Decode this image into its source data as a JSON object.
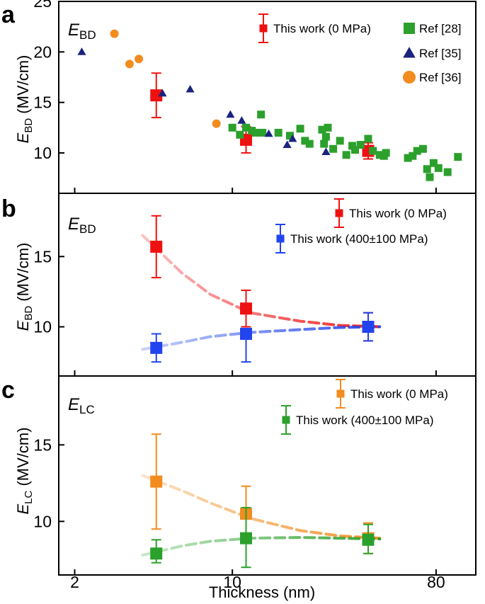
{
  "chart_data": [
    {
      "panel": "a",
      "type": "scatter",
      "label_main": "E",
      "label_sub": "BD",
      "xlabel": "Thickness (nm)",
      "ylabel_main": "E",
      "ylabel_sub": "BD",
      "ylabel_unit": " (MV/cm)",
      "xscale": "log",
      "xlim": [
        1.7,
        120
      ],
      "ylim": [
        6.0,
        25.0
      ],
      "ytick_values": [
        10,
        15,
        20,
        25
      ],
      "ytick_labels": [
        "10",
        "15",
        "20",
        "25"
      ],
      "legend_placement": "top-right",
      "colors": {
        "red": "#ee1111",
        "green": "#2ca02c",
        "navy": "#1a237e",
        "orange": "#f28c1e"
      },
      "series": [
        {
          "name": "This work (0 MPa)",
          "marker": "square",
          "color": "#ee1111",
          "x": [
            4.6,
            11.5,
            40
          ],
          "y": [
            15.7,
            11.3,
            10.2
          ],
          "yerr_low": [
            2.2,
            1.3,
            0.8
          ],
          "yerr_high": [
            2.2,
            1.3,
            0.8
          ]
        },
        {
          "name": "Ref [28]",
          "marker": "square",
          "color": "#2ca02c",
          "x": [
            10.0,
            10.8,
            11.5,
            12.2,
            12.7,
            13.4,
            13.6,
            16.0,
            18.0,
            20.0,
            21.0,
            22.0,
            25.0,
            25.5,
            26.0,
            26.5,
            28.0,
            30.0,
            32.0,
            34.0,
            35.0,
            37.0,
            40.0,
            42.0,
            45.0,
            47.0,
            48.0,
            60.0,
            63.0,
            66.0,
            70.0,
            73.0,
            75.0,
            78.0,
            82.0,
            90.0,
            100.0
          ],
          "y": [
            12.5,
            11.8,
            12.5,
            12.2,
            12.0,
            13.8,
            12.0,
            12.0,
            11.7,
            12.4,
            11.2,
            10.9,
            12.3,
            10.9,
            11.6,
            12.5,
            10.4,
            11.2,
            9.8,
            10.7,
            10.3,
            10.8,
            11.4,
            10.2,
            9.8,
            9.7,
            10.0,
            9.5,
            9.7,
            10.2,
            10.4,
            8.4,
            7.6,
            9.0,
            8.5,
            8.1,
            9.6
          ]
        },
        {
          "name": "Ref [35]",
          "marker": "triangle",
          "color": "#1a237e",
          "x": [
            2.15,
            4.9,
            6.5,
            9.8,
            11.0,
            14.5,
            17.5,
            18.5,
            26.0
          ],
          "y": [
            20.0,
            15.9,
            16.3,
            13.8,
            13.2,
            11.9,
            10.8,
            11.4,
            10.1
          ]
        },
        {
          "name": "Ref [36]",
          "marker": "circle",
          "color": "#f28c1e",
          "x": [
            3.0,
            3.5,
            3.85,
            8.5
          ],
          "y": [
            21.8,
            18.8,
            19.3,
            12.9
          ]
        }
      ]
    },
    {
      "panel": "b",
      "type": "scatter",
      "label_main": "E",
      "label_sub": "BD",
      "ylabel_main": "E",
      "ylabel_sub": "BD",
      "ylabel_unit": " (MV/cm)",
      "xscale": "log",
      "xlim": [
        1.7,
        120
      ],
      "ylim": [
        6.5,
        19.5
      ],
      "ytick_values": [
        10,
        15
      ],
      "ytick_labels": [
        "10",
        "15"
      ],
      "legend_placement": "top-right",
      "series": [
        {
          "name": "This work (0 MPa)",
          "marker": "square",
          "color": "#ee1111",
          "x": [
            4.6,
            11.5,
            40
          ],
          "y": [
            15.7,
            11.3,
            10.0
          ],
          "yerr_low": [
            2.2,
            1.3,
            1.0
          ],
          "yerr_high": [
            2.2,
            1.3,
            1.0
          ],
          "fit": {
            "x": [
              4.0,
              6.0,
              8.0,
              12.0,
              20.0,
              30.0,
              45.0
            ],
            "y": [
              16.5,
              13.8,
              12.3,
              11.0,
              10.4,
              10.1,
              10.0
            ]
          }
        },
        {
          "name": "This work (400±100 MPa)",
          "marker": "square",
          "color": "#2244ee",
          "x": [
            4.6,
            11.5,
            40
          ],
          "y": [
            8.5,
            9.5,
            10.0
          ],
          "yerr_low": [
            1.0,
            2.0,
            1.0
          ],
          "yerr_high": [
            1.0,
            0.0,
            1.0
          ],
          "fit": {
            "x": [
              4.0,
              6.0,
              8.0,
              12.0,
              20.0,
              30.0,
              45.0
            ],
            "y": [
              8.4,
              8.9,
              9.3,
              9.6,
              9.8,
              9.95,
              10.0
            ]
          }
        }
      ]
    },
    {
      "panel": "c",
      "type": "scatter",
      "label_main": "E",
      "label_sub": "LC",
      "ylabel_main": "E",
      "ylabel_sub": "LC",
      "ylabel_unit": " (MV/cm)",
      "xscale": "log",
      "xlim": [
        1.7,
        120
      ],
      "ylim": [
        6.5,
        19.5
      ],
      "ytick_values": [
        10,
        15
      ],
      "ytick_labels": [
        "10",
        "15"
      ],
      "xtick_values": [
        2,
        10,
        80
      ],
      "xtick_labels": [
        "2",
        "10",
        "80"
      ],
      "legend_placement": "top-right",
      "series": [
        {
          "name": "This work (0 MPa)",
          "marker": "square",
          "color": "#f28c1e",
          "x": [
            4.6,
            11.5,
            40
          ],
          "y": [
            12.6,
            10.5,
            8.9
          ],
          "yerr_low": [
            3.1,
            1.8,
            1.0
          ],
          "yerr_high": [
            3.1,
            1.8,
            1.0
          ],
          "fit": {
            "x": [
              4.0,
              6.0,
              8.0,
              12.0,
              20.0,
              30.0,
              45.0
            ],
            "y": [
              13.0,
              12.0,
              11.2,
              10.2,
              9.4,
              9.05,
              8.9
            ]
          }
        },
        {
          "name": "This work (400±100 MPa)",
          "marker": "square",
          "color": "#2ca02c",
          "x": [
            4.6,
            11.5,
            40
          ],
          "y": [
            7.9,
            8.9,
            8.8
          ],
          "yerr_low": [
            0.6,
            1.9,
            0.9
          ],
          "yerr_high": [
            0.9,
            2.0,
            1.0
          ],
          "fit": {
            "x": [
              4.0,
              6.0,
              8.0,
              12.0,
              20.0,
              30.0,
              45.0
            ],
            "y": [
              7.8,
              8.4,
              8.7,
              8.9,
              8.95,
              8.9,
              8.85
            ]
          }
        }
      ]
    }
  ]
}
